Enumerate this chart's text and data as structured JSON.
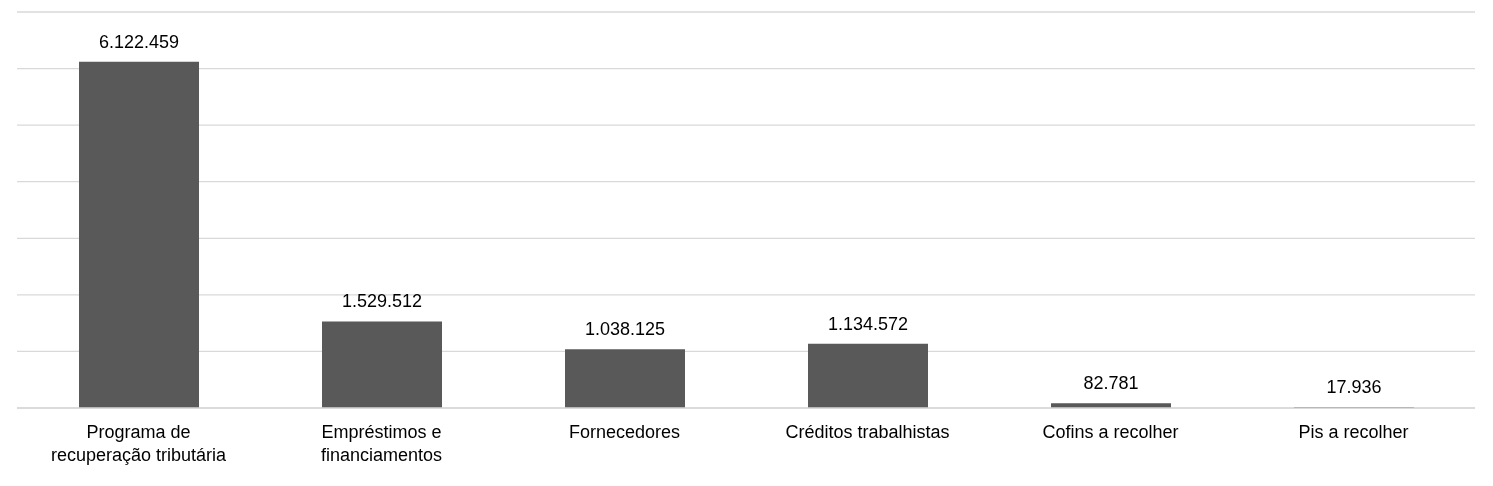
{
  "chart_data": {
    "type": "bar",
    "categories": [
      "Programa de recuperação tributária",
      "Empréstimos e financiamentos",
      "Fornecedores",
      "Créditos trabalhistas",
      "Cofins a recolher",
      "Pis a recolher"
    ],
    "values": [
      6122459,
      1529512,
      1038125,
      1134572,
      82781,
      17936
    ],
    "value_labels": [
      "6.122.459",
      "1.529.512",
      "1.038.125",
      "1.134.572",
      "82.781",
      "17.936"
    ],
    "color": "#595959",
    "ylim": [
      0,
      7000000
    ],
    "yticks": [
      {
        "value": 0,
        "label": null
      },
      {
        "value": 1000000,
        "label": null
      },
      {
        "value": 2000000,
        "label": null
      },
      {
        "value": 3000000,
        "label": null
      },
      {
        "value": 4000000,
        "label": null
      },
      {
        "value": 5000000,
        "label": null
      },
      {
        "value": 6000000,
        "label": null
      },
      {
        "value": 7000000,
        "label": null
      }
    ],
    "tick_labels": "x",
    "grid": "y"
  }
}
